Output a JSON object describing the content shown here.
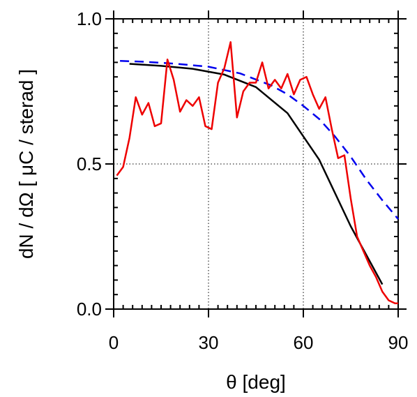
{
  "chart_data": {
    "type": "line",
    "title": "",
    "xlabel": "θ  [deg]",
    "ylabel": "dN / dΩ  [ μC / sterad ]",
    "xlim": [
      0,
      90
    ],
    "ylim": [
      0,
      1.0
    ],
    "x_ticks": [
      0,
      30,
      60,
      90
    ],
    "x_tick_labels": [
      "0",
      "30",
      "60",
      "90"
    ],
    "y_ticks": [
      0.0,
      0.5,
      1.0
    ],
    "y_tick_labels": [
      "0.0",
      "0.5",
      "1.0"
    ],
    "grid": true,
    "legend": "none",
    "series": [
      {
        "color": "#000000",
        "style": "solid",
        "x": [
          5,
          15,
          25,
          35,
          45,
          55,
          65,
          75,
          85
        ],
        "y": [
          0.845,
          0.838,
          0.828,
          0.808,
          0.765,
          0.675,
          0.515,
          0.285,
          0.085
        ]
      },
      {
        "color": "#0000ee",
        "style": "dashed",
        "x": [
          2,
          10,
          20,
          30,
          40,
          50,
          55,
          60,
          65,
          70,
          75,
          80,
          85,
          90
        ],
        "y": [
          0.855,
          0.852,
          0.845,
          0.835,
          0.812,
          0.77,
          0.74,
          0.7,
          0.655,
          0.595,
          0.525,
          0.445,
          0.375,
          0.31
        ]
      },
      {
        "color": "#ee0000",
        "style": "solid",
        "x": [
          1,
          3,
          5,
          7,
          9,
          11,
          13,
          15,
          17,
          19,
          21,
          23,
          25,
          27,
          29,
          31,
          33,
          35,
          37,
          39,
          41,
          43,
          45,
          47,
          49,
          51,
          53,
          55,
          57,
          59,
          61,
          63,
          65,
          67,
          69,
          71,
          73,
          75,
          77,
          79,
          81,
          83,
          85,
          87,
          89,
          90
        ],
        "y": [
          0.46,
          0.49,
          0.59,
          0.73,
          0.67,
          0.71,
          0.63,
          0.64,
          0.86,
          0.79,
          0.68,
          0.72,
          0.7,
          0.73,
          0.63,
          0.62,
          0.78,
          0.83,
          0.92,
          0.66,
          0.75,
          0.78,
          0.78,
          0.85,
          0.76,
          0.79,
          0.76,
          0.81,
          0.74,
          0.79,
          0.8,
          0.74,
          0.69,
          0.73,
          0.62,
          0.52,
          0.53,
          0.38,
          0.25,
          0.2,
          0.15,
          0.11,
          0.06,
          0.03,
          0.02,
          0.02
        ]
      }
    ]
  }
}
